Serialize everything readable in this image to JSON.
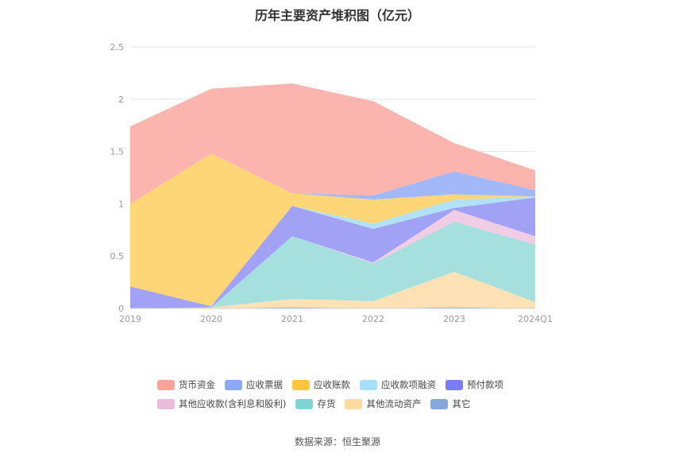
{
  "chart_data": {
    "type": "area",
    "title": "历年主要资产堆积图（亿元）",
    "x": [
      "2019",
      "2020",
      "2021",
      "2022",
      "2023",
      "2024Q1"
    ],
    "ylim": [
      0,
      2.5
    ],
    "yticks": [
      "0",
      "0.5",
      "1",
      "1.5",
      "2",
      "2.5"
    ],
    "grid": true,
    "stacked": true,
    "legend_position": "bottom",
    "series": [
      {
        "name": "货币资金",
        "color": "#fcb4af",
        "values": [
          0.74,
          0.62,
          1.05,
          0.9,
          0.27,
          0.19
        ]
      },
      {
        "name": "应收票据",
        "color": "#a3b8f9",
        "values": [
          0.0,
          0.0,
          0.0,
          0.04,
          0.22,
          0.06
        ]
      },
      {
        "name": "应收账款",
        "color": "#fed678",
        "values": [
          0.79,
          1.46,
          0.12,
          0.23,
          0.05,
          0.0
        ]
      },
      {
        "name": "应收款项融资",
        "color": "#b0e1f7",
        "values": [
          0.0,
          0.0,
          0.0,
          0.05,
          0.08,
          0.01
        ]
      },
      {
        "name": "预付款项",
        "color": "#a1a2f6",
        "values": [
          0.21,
          0.01,
          0.29,
          0.32,
          0.02,
          0.37
        ]
      },
      {
        "name": "其他应收款(含利息和股利)",
        "color": "#f0cde4",
        "values": [
          0.0,
          0.0,
          0.0,
          0.01,
          0.11,
          0.08
        ]
      },
      {
        "name": "存货",
        "color": "#a5e0df",
        "values": [
          0.0,
          0.0,
          0.6,
          0.36,
          0.48,
          0.55
        ]
      },
      {
        "name": "其他流动资产",
        "color": "#fee2b6",
        "values": [
          0.0,
          0.01,
          0.08,
          0.07,
          0.34,
          0.06
        ]
      },
      {
        "name": "其它",
        "color": "#8fb0dc",
        "values": [
          0.0,
          0.0,
          0.01,
          0.0,
          0.01,
          0.0
        ]
      }
    ]
  },
  "legend_rows": [
    [
      {
        "label": "货币资金",
        "color": "#fba39a"
      },
      {
        "label": "应收票据",
        "color": "#8ea8f8"
      },
      {
        "label": "应收账款",
        "color": "#fec53d"
      },
      {
        "label": "应收款项融资",
        "color": "#a6dffa"
      },
      {
        "label": "预付款项",
        "color": "#7b7cf2"
      }
    ],
    [
      {
        "label": "其他应收款(含利息和股利)",
        "color": "#ecbbd9"
      },
      {
        "label": "存货",
        "color": "#80d4d2"
      },
      {
        "label": "其他流动资产",
        "color": "#fed9a0"
      },
      {
        "label": "其它",
        "color": "#86a7d9"
      }
    ]
  ],
  "source": "数据来源：恒生聚源"
}
